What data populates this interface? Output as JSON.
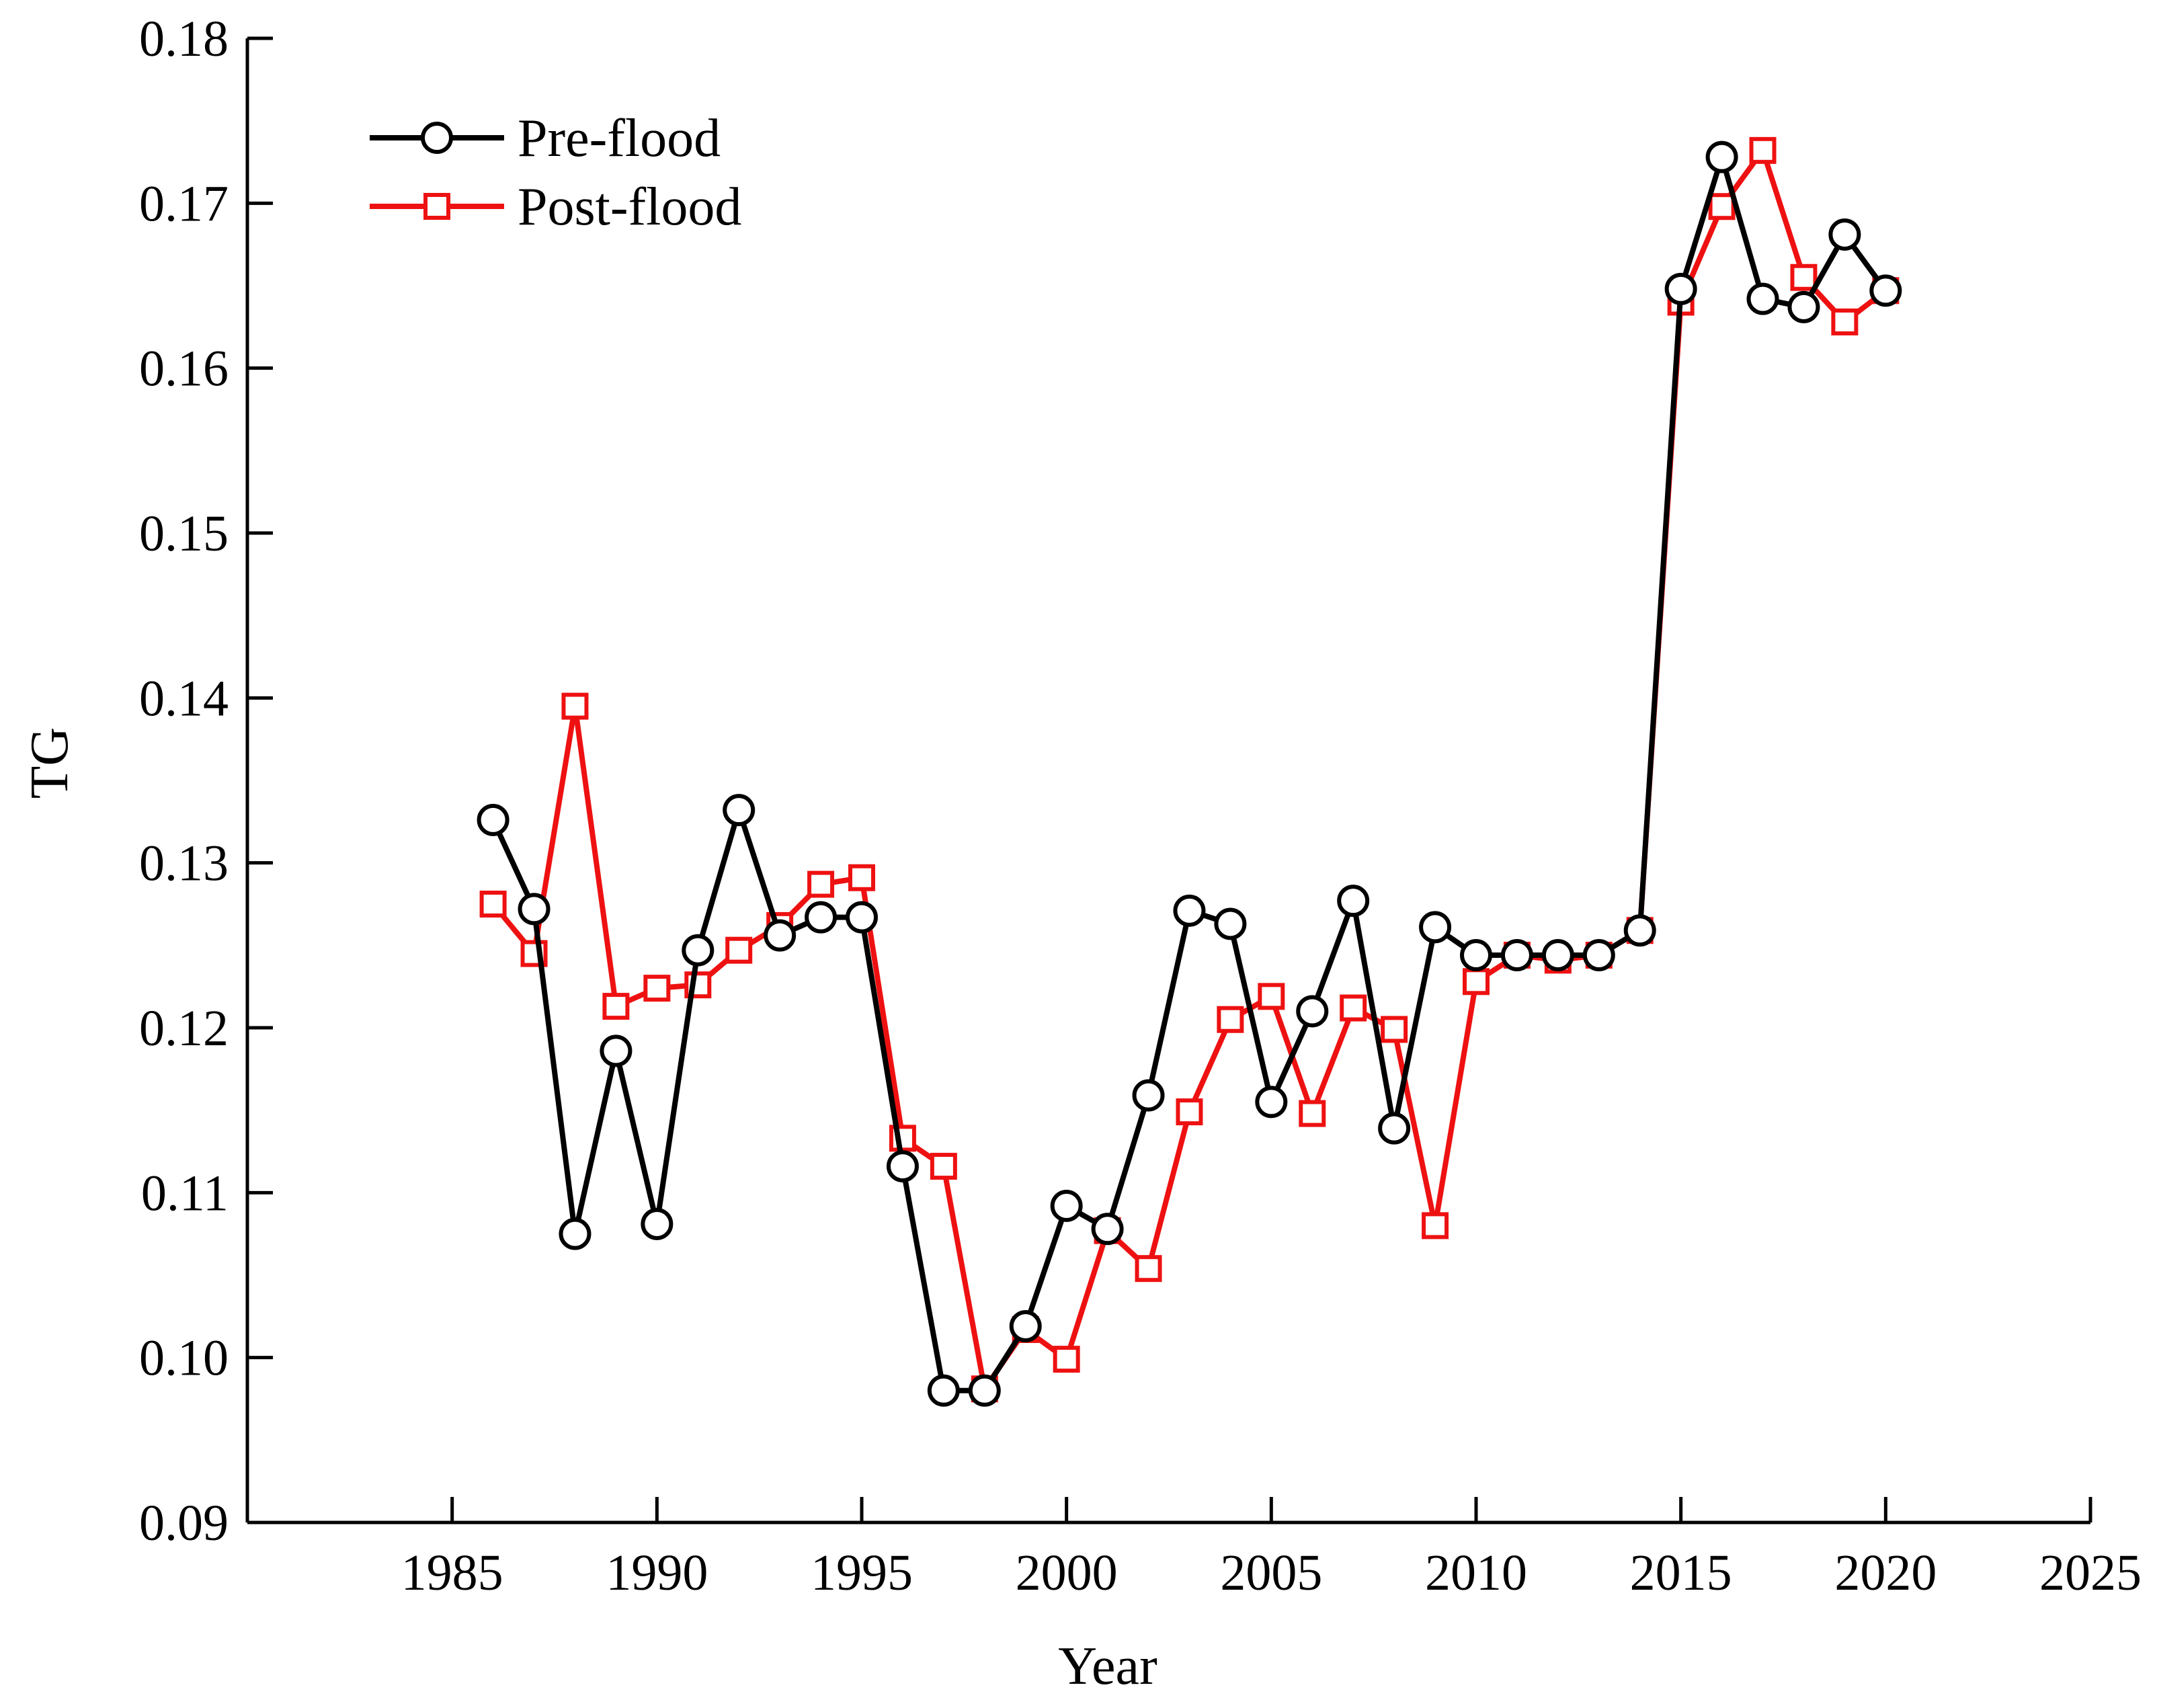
{
  "chart_data": {
    "type": "line",
    "title": "",
    "xlabel": "Year",
    "ylabel": "TG",
    "xlim": [
      1980,
      2025
    ],
    "ylim": [
      0.09,
      0.18
    ],
    "x_ticks": [
      "1985",
      "1990",
      "1995",
      "2000",
      "2005",
      "2010",
      "2015",
      "2020",
      "2025"
    ],
    "y_ticks": [
      "0.09",
      "0.10",
      "0.11",
      "0.12",
      "0.13",
      "0.14",
      "0.15",
      "0.16",
      "0.17",
      "0.18"
    ],
    "grid": false,
    "legend_position": "top-left",
    "x": [
      1986,
      1987,
      1988,
      1989,
      1990,
      1991,
      1992,
      1993,
      1994,
      1995,
      1996,
      1997,
      1998,
      1999,
      2000,
      2001,
      2002,
      2003,
      2004,
      2005,
      2006,
      2007,
      2008,
      2009,
      2010,
      2011,
      2012,
      2013,
      2014,
      2015,
      2016,
      2017,
      2018,
      2019,
      2020
    ],
    "series": [
      {
        "name": "Post-flood",
        "color": "#ee1111",
        "marker": "square",
        "values": [
          0.1275,
          0.1245,
          0.1395,
          0.1213,
          0.1224,
          0.1226,
          0.1247,
          0.1262,
          0.1287,
          0.1291,
          0.1133,
          0.1116,
          0.0981,
          0.1017,
          0.0999,
          0.1077,
          0.1054,
          0.1149,
          0.1205,
          0.1219,
          0.1148,
          0.1212,
          0.1199,
          0.108,
          0.1228,
          0.1244,
          0.1241,
          0.1244,
          0.1259,
          0.164,
          0.1698,
          0.1732,
          0.1655,
          0.1628,
          0.1647
        ]
      },
      {
        "name": "Pre-flood",
        "color": "#000000",
        "marker": "circle",
        "values": [
          0.1326,
          0.1272,
          0.1075,
          0.1186,
          0.1081,
          0.1247,
          0.1332,
          0.1256,
          0.1267,
          0.1267,
          0.1116,
          0.098,
          0.098,
          0.1019,
          0.1092,
          0.1078,
          0.1159,
          0.1271,
          0.1263,
          0.1155,
          0.121,
          0.1277,
          0.1139,
          0.1261,
          0.1244,
          0.1244,
          0.1244,
          0.1244,
          0.1259,
          0.1648,
          0.1728,
          0.1642,
          0.1637,
          0.1681,
          0.1647
        ]
      }
    ],
    "legend": [
      "Pre-flood",
      "Post-flood"
    ]
  }
}
